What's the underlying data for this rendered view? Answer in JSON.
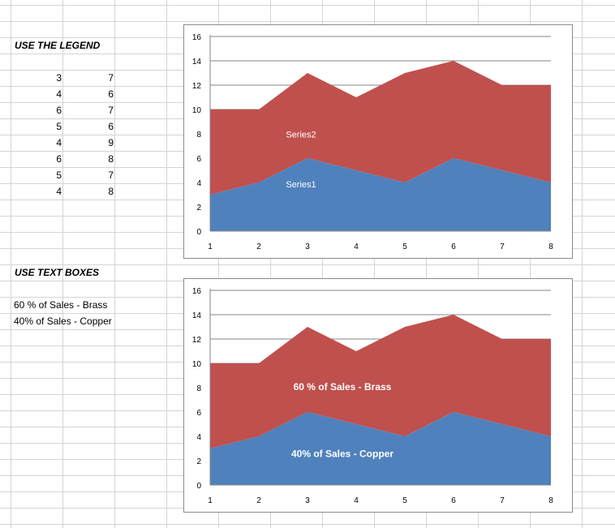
{
  "section1": {
    "heading": "USE THE LEGEND",
    "table": [
      [
        "3",
        "7"
      ],
      [
        "4",
        "6"
      ],
      [
        "6",
        "7"
      ],
      [
        "5",
        "6"
      ],
      [
        "4",
        "9"
      ],
      [
        "6",
        "8"
      ],
      [
        "5",
        "7"
      ],
      [
        "4",
        "8"
      ]
    ]
  },
  "section2": {
    "heading": "USE TEXT BOXES",
    "labels": [
      "60 % of Sales - Brass",
      "40% of Sales - Copper"
    ]
  },
  "colors": {
    "series_bottom": "#4f81bd",
    "series_top": "#c0504d",
    "gridline": "#868686"
  },
  "chart_data": [
    {
      "type": "area",
      "stacked": true,
      "x": [
        "1",
        "2",
        "3",
        "4",
        "5",
        "6",
        "7",
        "8"
      ],
      "ylim": [
        0,
        16
      ],
      "yticks": [
        "0",
        "2",
        "4",
        "6",
        "8",
        "10",
        "12",
        "14",
        "16"
      ],
      "grid": true,
      "series": [
        {
          "name": "Series1",
          "values": [
            3,
            4,
            6,
            5,
            4,
            6,
            5,
            4
          ]
        },
        {
          "name": "Series2",
          "values": [
            7,
            6,
            7,
            6,
            9,
            8,
            7,
            8
          ]
        }
      ]
    },
    {
      "type": "area",
      "stacked": true,
      "x": [
        "1",
        "2",
        "3",
        "4",
        "5",
        "6",
        "7",
        "8"
      ],
      "ylim": [
        0,
        16
      ],
      "yticks": [
        "0",
        "2",
        "4",
        "6",
        "8",
        "10",
        "12",
        "14",
        "16"
      ],
      "grid": true,
      "series": [
        {
          "name": "40% of Sales - Copper",
          "values": [
            3,
            4,
            6,
            5,
            4,
            6,
            5,
            4
          ]
        },
        {
          "name": "60 % of Sales - Brass",
          "values": [
            7,
            6,
            7,
            6,
            9,
            8,
            7,
            8
          ]
        }
      ]
    }
  ]
}
